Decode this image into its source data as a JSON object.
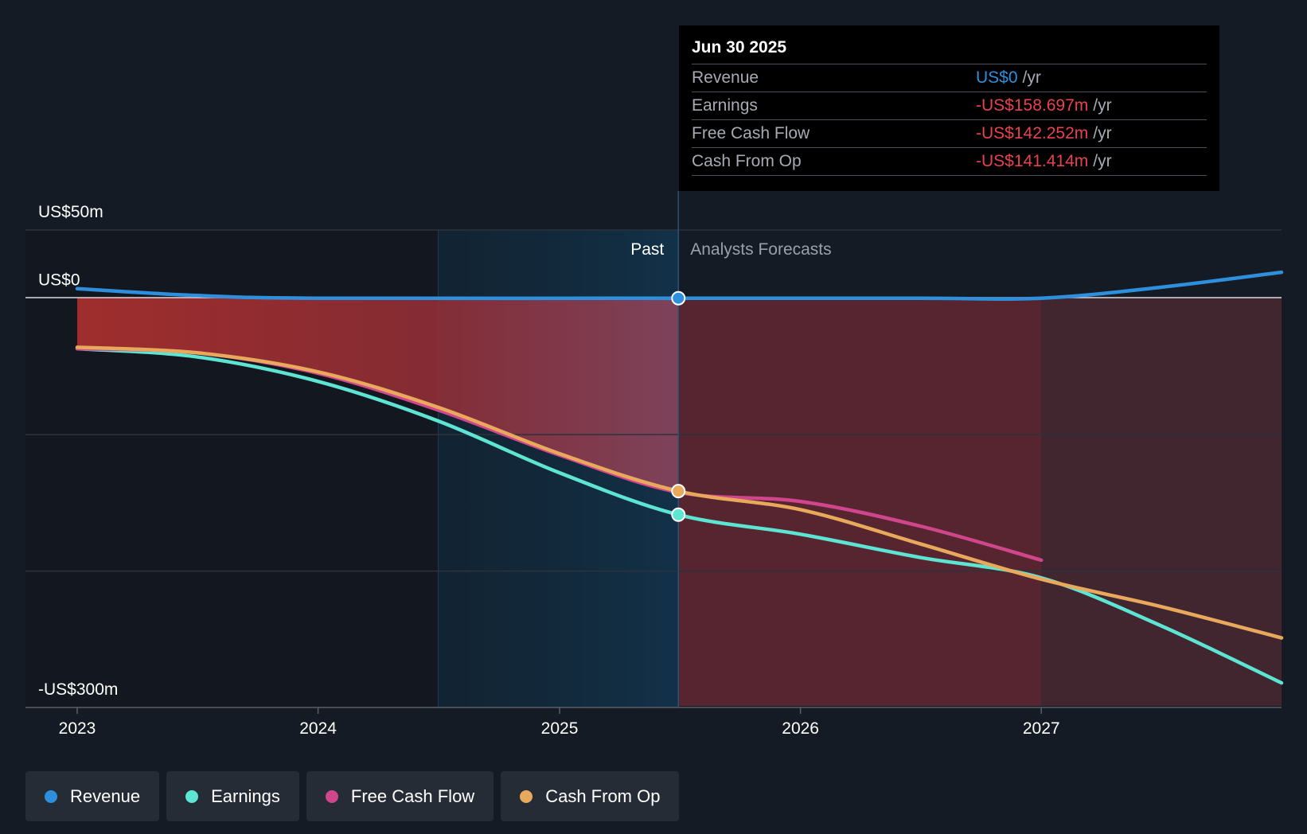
{
  "chart_data": {
    "type": "line",
    "title": "",
    "x_ticks": [
      "2023",
      "2024",
      "2025",
      "2026",
      "2027"
    ],
    "y_labels": [
      "US$50m",
      "US$0",
      "-US$300m"
    ],
    "ylim": [
      -300,
      50
    ],
    "past_label": "Past",
    "forecast_label": "Analysts Forecasts",
    "divider_date": "2025-06-30",
    "grid": true,
    "series": [
      {
        "name": "Revenue",
        "color": "#2e8fdc",
        "points": [
          [
            "2023-01-01",
            7
          ],
          [
            "2023-07-01",
            2
          ],
          [
            "2024-01-01",
            0
          ],
          [
            "2025-06-30",
            0
          ],
          [
            "2026-06-30",
            0
          ],
          [
            "2027-01-01",
            0
          ],
          [
            "2027-07-01",
            8
          ],
          [
            "2027-12-31",
            19
          ]
        ]
      },
      {
        "name": "Earnings",
        "color": "#5ee4d2",
        "points": [
          [
            "2023-01-01",
            -37
          ],
          [
            "2023-07-01",
            -43
          ],
          [
            "2024-01-01",
            -61
          ],
          [
            "2024-07-01",
            -90
          ],
          [
            "2025-01-01",
            -128
          ],
          [
            "2025-06-30",
            -158.697
          ],
          [
            "2026-01-01",
            -173
          ],
          [
            "2026-07-01",
            -190
          ],
          [
            "2027-01-01",
            -205
          ],
          [
            "2027-07-01",
            -240
          ],
          [
            "2027-12-31",
            -282
          ]
        ]
      },
      {
        "name": "Free Cash Flow",
        "color": "#d0468c",
        "points": [
          [
            "2023-01-01",
            -37
          ],
          [
            "2023-07-01",
            -40
          ],
          [
            "2024-01-01",
            -55
          ],
          [
            "2024-07-01",
            -82
          ],
          [
            "2025-01-01",
            -115
          ],
          [
            "2025-06-30",
            -142.252
          ],
          [
            "2026-01-01",
            -149
          ],
          [
            "2026-07-01",
            -167
          ],
          [
            "2027-01-01",
            -192
          ]
        ]
      },
      {
        "name": "Cash From Op",
        "color": "#e8a95c",
        "points": [
          [
            "2023-01-01",
            -36
          ],
          [
            "2023-07-01",
            -40
          ],
          [
            "2024-01-01",
            -54
          ],
          [
            "2024-07-01",
            -80
          ],
          [
            "2025-01-01",
            -114
          ],
          [
            "2025-06-30",
            -141.414
          ],
          [
            "2026-01-01",
            -155
          ],
          [
            "2026-07-01",
            -180
          ],
          [
            "2027-01-01",
            -206
          ],
          [
            "2027-07-01",
            -226
          ],
          [
            "2027-12-31",
            -249
          ]
        ]
      }
    ]
  },
  "tooltip": {
    "date": "Jun 30 2025",
    "rows": [
      {
        "label": "Revenue",
        "value": "US$0",
        "unit": "/yr",
        "color": "#2e8fdc"
      },
      {
        "label": "Earnings",
        "value": "-US$158.697m",
        "unit": "/yr",
        "color": "#e8414f"
      },
      {
        "label": "Free Cash Flow",
        "value": "-US$142.252m",
        "unit": "/yr",
        "color": "#e8414f"
      },
      {
        "label": "Cash From Op",
        "value": "-US$141.414m",
        "unit": "/yr",
        "color": "#e8414f"
      }
    ]
  },
  "legend": [
    {
      "label": "Revenue",
      "color": "#2e8fdc"
    },
    {
      "label": "Earnings",
      "color": "#5ee4d2"
    },
    {
      "label": "Free Cash Flow",
      "color": "#d0468c"
    },
    {
      "label": "Cash From Op",
      "color": "#e8a95c"
    }
  ]
}
